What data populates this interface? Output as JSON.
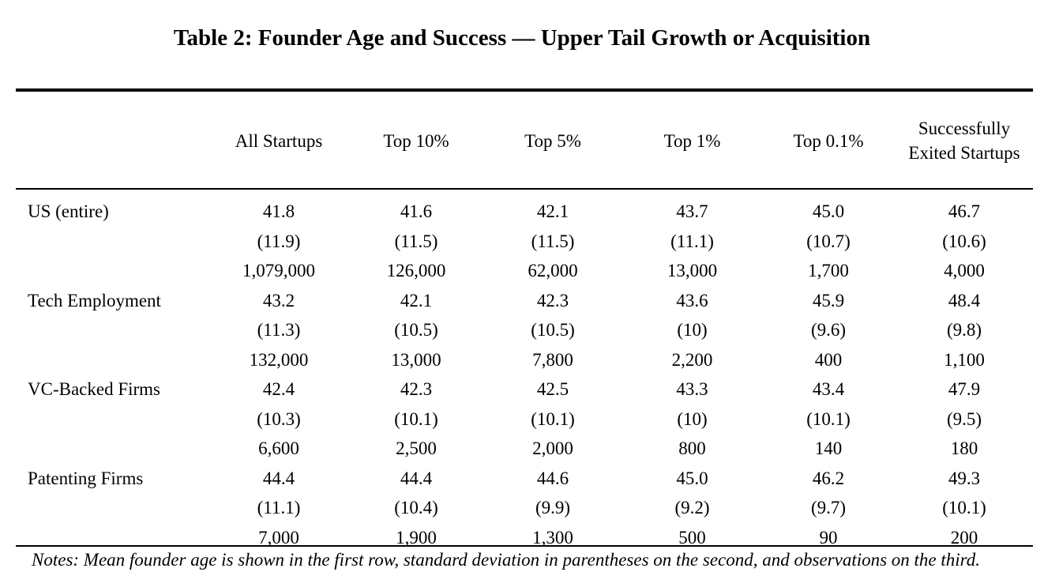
{
  "title": "Table 2: Founder Age and Success — Upper Tail Growth or Acquisition",
  "columns": [
    "All Startups",
    "Top 10%",
    "Top 5%",
    "Top 1%",
    "Top 0.1%",
    "Successfully Exited Startups"
  ],
  "groups": [
    {
      "label": "US (entire)",
      "mean": [
        "41.8",
        "41.6",
        "42.1",
        "43.7",
        "45.0",
        "46.7"
      ],
      "sd": [
        "(11.9)",
        "(11.5)",
        "(11.5)",
        "(11.1)",
        "(10.7)",
        "(10.6)"
      ],
      "n": [
        "1,079,000",
        "126,000",
        "62,000",
        "13,000",
        "1,700",
        "4,000"
      ]
    },
    {
      "label": "Tech Employment",
      "mean": [
        "43.2",
        "42.1",
        "42.3",
        "43.6",
        "45.9",
        "48.4"
      ],
      "sd": [
        "(11.3)",
        "(10.5)",
        "(10.5)",
        "(10)",
        "(9.6)",
        "(9.8)"
      ],
      "n": [
        "132,000",
        "13,000",
        "7,800",
        "2,200",
        "400",
        "1,100"
      ]
    },
    {
      "label": "VC-Backed Firms",
      "mean": [
        "42.4",
        "42.3",
        "42.5",
        "43.3",
        "43.4",
        "47.9"
      ],
      "sd": [
        "(10.3)",
        "(10.1)",
        "(10.1)",
        "(10)",
        "(10.1)",
        "(9.5)"
      ],
      "n": [
        "6,600",
        "2,500",
        "2,000",
        "800",
        "140",
        "180"
      ]
    },
    {
      "label": "Patenting Firms",
      "mean": [
        "44.4",
        "44.4",
        "44.6",
        "45.0",
        "46.2",
        "49.3"
      ],
      "sd": [
        "(11.1)",
        "(10.4)",
        "(9.9)",
        "(9.2)",
        "(9.7)",
        "(10.1)"
      ],
      "n": [
        "7,000",
        "1,900",
        "1,300",
        "500",
        "90",
        "200"
      ]
    }
  ],
  "notes": "Notes: Mean founder age is shown in the first row, standard deviation in parentheses on the second, and observations on the third."
}
